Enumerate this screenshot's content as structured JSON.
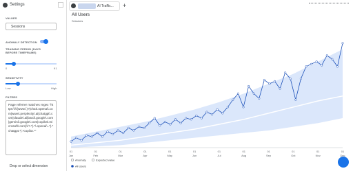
{
  "top_bar": {
    "tab_label": "AI Traffic...",
    "add_tab": "+"
  },
  "sidebar": {
    "title": "Settings",
    "values_heading": "VALUES",
    "metric": "Sessions",
    "anomaly_heading": "ANOMALY DETECTION",
    "training_heading": "TRAINING PERIOD (DAYS BEFORE TIMEFRAME)",
    "training_min": "0",
    "training_max": "91",
    "sensitivity_heading": "SENSITIVITY",
    "sensitivity_low": "Low",
    "sensitivity_high": "High",
    "filters_heading": "FILTERS",
    "filter_text": "Page referrer matches regex \"https:\\/\\/(www\\.)?(chat\\.openai\\.com|www\\.perplexity\\.ai|chatgpt\\.com|claude\\.ai|bard\\.google\\.com|gemini\\.google\\.com|copilot\\.microsoft\\.com)\\/?.*|.*\\.openai\\..*|.*chatgpt.*|.*copilot.*\"",
    "dimension_drop": "Drop or select dimension"
  },
  "chart_data": {
    "type": "line",
    "title": "All Users",
    "y_label": "Sessions",
    "ylim": [
      0,
      100
    ],
    "xticks": [
      {
        "day": "01",
        "month": "Jan"
      },
      {
        "day": "01",
        "month": "Feb"
      },
      {
        "day": "01",
        "month": "Mar"
      },
      {
        "day": "01",
        "month": "Apr"
      },
      {
        "day": "01",
        "month": "May"
      },
      {
        "day": "01",
        "month": "Jun"
      },
      {
        "day": "01",
        "month": "Jul"
      },
      {
        "day": "01",
        "month": "Aug"
      },
      {
        "day": "01",
        "month": "Sep"
      },
      {
        "day": "01",
        "month": "Oct"
      },
      {
        "day": "01",
        "month": "Nov"
      },
      {
        "day": "01",
        "month": "Dec"
      }
    ],
    "series": [
      {
        "name": "All Users",
        "color": "#1a4fb8",
        "values": [
          5,
          8,
          6,
          10,
          9,
          12,
          9,
          13,
          11,
          14,
          12,
          16,
          14,
          17,
          16,
          20,
          24,
          18,
          21,
          19,
          23,
          20,
          24,
          23,
          26,
          24,
          29,
          27,
          31,
          28,
          33,
          39,
          44,
          33,
          50,
          44,
          40,
          55,
          52,
          54,
          48,
          61,
          56,
          39,
          56,
          66,
          68,
          70,
          67,
          75,
          72,
          66,
          85
        ]
      },
      {
        "name": "Expected value",
        "color": "#ffffff",
        "values": [
          2,
          4,
          6,
          9,
          12,
          15,
          19,
          23,
          28,
          33,
          38,
          42
        ]
      }
    ],
    "band": {
      "name": "Anomaly",
      "color": "#dbe7fb",
      "upper": [
        9,
        13,
        17,
        21,
        26,
        31,
        37,
        44,
        52,
        60,
        70,
        80
      ],
      "lower": [
        0,
        1,
        2,
        4,
        6,
        8,
        10,
        12,
        14,
        17,
        20,
        24
      ]
    }
  }
}
